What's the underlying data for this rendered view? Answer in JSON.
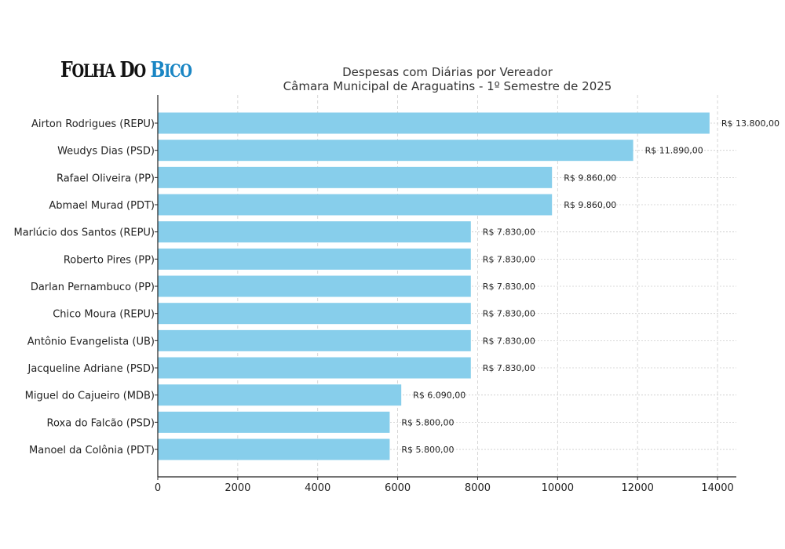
{
  "logo": {
    "part1": "Folha do",
    "part2": "Bico"
  },
  "chart_data": {
    "type": "bar",
    "orientation": "horizontal",
    "title": "Despesas com Diárias por Vereador",
    "subtitle": "Câmara Municipal de Araguatins - 1º Semestre de 2025",
    "xlabel": "",
    "ylabel": "",
    "xlim": [
      0,
      14470
    ],
    "xticks": [
      0,
      2000,
      4000,
      6000,
      8000,
      10000,
      12000,
      14000
    ],
    "grid": true,
    "bar_color": "#87ceeb",
    "categories": [
      "Airton Rodrigues (REPU)",
      "Weudys Dias (PSD)",
      "Rafael Oliveira (PP)",
      "Abmael Murad (PDT)",
      "Marlúcio dos Santos (REPU)",
      "Roberto Pires (PP)",
      "Darlan Pernambuco (PP)",
      "Chico Moura (REPU)",
      "Antônio Evangelista (UB)",
      "Jacqueline Adriane (PSD)",
      "Miguel do Cajueiro (MDB)",
      "Roxa do Falcão (PSD)",
      "Manoel da Colônia (PDT)"
    ],
    "values": [
      13800,
      11890,
      9860,
      9860,
      7830,
      7830,
      7830,
      7830,
      7830,
      7830,
      6090,
      5800,
      5800
    ],
    "data_labels": [
      "R$ 13.800,00",
      "R$ 11.890,00",
      "R$ 9.860,00",
      "R$ 9.860,00",
      "R$ 7.830,00",
      "R$ 7.830,00",
      "R$ 7.830,00",
      "R$ 7.830,00",
      "R$ 7.830,00",
      "R$ 7.830,00",
      "R$ 6.090,00",
      "R$ 5.800,00",
      "R$ 5.800,00"
    ]
  }
}
